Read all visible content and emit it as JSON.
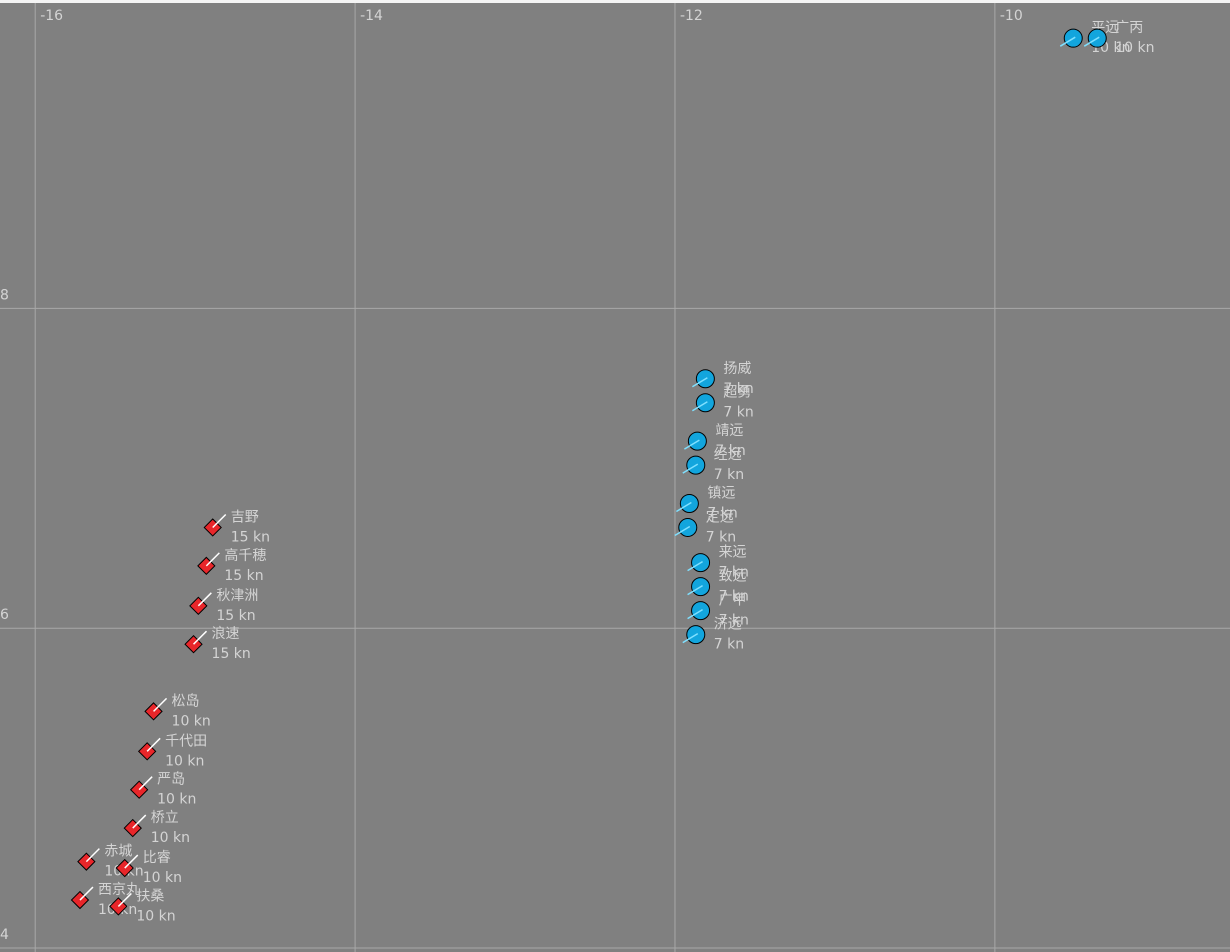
{
  "chart_data": {
    "type": "scatter",
    "xlim": [
      -16.22,
      -8.53
    ],
    "ylim": [
      3.975,
      9.91
    ],
    "xticks": [
      -16,
      -14,
      -12,
      -10
    ],
    "yticks": [
      8,
      6,
      4
    ],
    "grid": true,
    "series": [
      {
        "color": "#e8262a",
        "marker": "diamond",
        "labels": [
          "吉野",
          "高千穂",
          "秋津洲",
          "浪速",
          "松岛",
          "千代田",
          "严岛",
          "桥立",
          "赤城",
          "比睿",
          "西京丸",
          "扶桑"
        ],
        "speeds": [
          "15 kn",
          "15 kn",
          "15 kn",
          "15 kn",
          "10 kn",
          "10 kn",
          "10 kn",
          "10 kn",
          "10 kn",
          "10 kn",
          "10 kn",
          "10 kn"
        ],
        "x": [
          -14.89,
          -14.93,
          -14.98,
          -15.01,
          -15.26,
          -15.3,
          -15.35,
          -15.39,
          -15.68,
          -15.44,
          -15.72,
          -15.48
        ],
        "y": [
          6.63,
          6.39,
          6.14,
          5.9,
          5.48,
          5.23,
          4.99,
          4.75,
          4.54,
          4.5,
          4.3,
          4.26
        ]
      },
      {
        "color": "#12a5dd",
        "marker": "circle",
        "labels": [
          "平远",
          "广丙",
          "扬威",
          "超勇",
          "靖远",
          "经远",
          "镇远",
          "定远",
          "来远",
          "致远",
          "广甲",
          "济远"
        ],
        "speeds": [
          "10 kn",
          "10 kn",
          "7 kn",
          "7 kn",
          "7 kn",
          "7 kn",
          "7 kn",
          "7 kn",
          "7 kn",
          "7 kn",
          "7 kn",
          "7 kn"
        ],
        "x": [
          -9.51,
          -9.36,
          -11.81,
          -11.81,
          -11.86,
          -11.87,
          -11.91,
          -11.92,
          -11.84,
          -11.84,
          -11.84,
          -11.87
        ],
        "y": [
          9.69,
          9.69,
          7.56,
          7.41,
          7.17,
          7.02,
          6.78,
          6.63,
          6.41,
          6.26,
          6.11,
          5.96
        ]
      }
    ]
  }
}
